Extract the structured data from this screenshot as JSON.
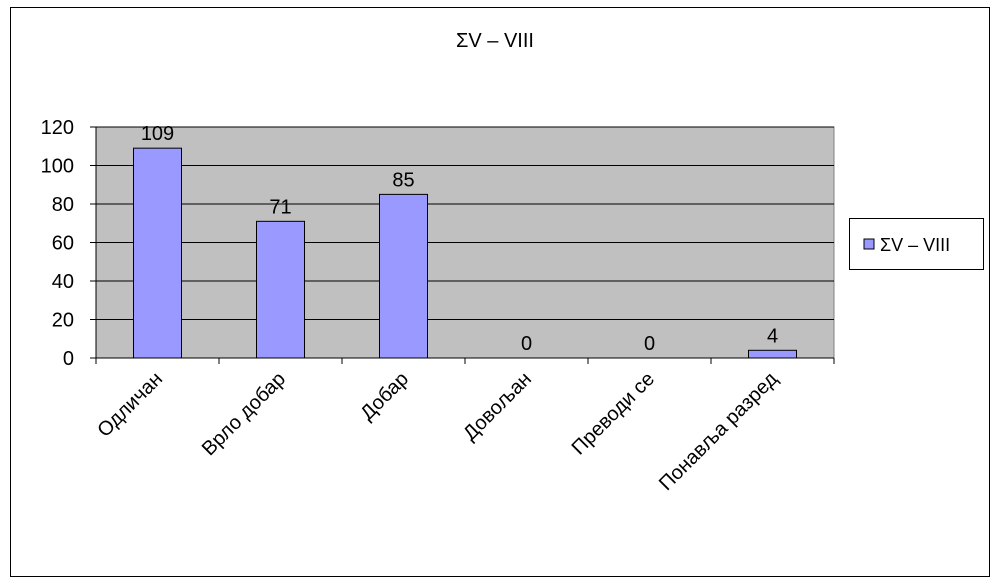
{
  "chart_data": {
    "type": "bar",
    "title": "ΣV – VIII",
    "categories": [
      "Одличан",
      "Врло добар",
      "Добар",
      "Довољан",
      "Преводи се",
      "Понавља разред"
    ],
    "series": [
      {
        "name": "ΣV – VIII",
        "values": [
          109,
          71,
          85,
          0,
          0,
          4
        ]
      }
    ],
    "ylim": [
      0,
      120
    ],
    "yticks": [
      0,
      20,
      40,
      60,
      80,
      100,
      120
    ],
    "grid": true,
    "legend": "right",
    "colors": {
      "bar": "#9999ff",
      "plot_bg": "#c0c0c0",
      "frame": "#000000"
    }
  }
}
